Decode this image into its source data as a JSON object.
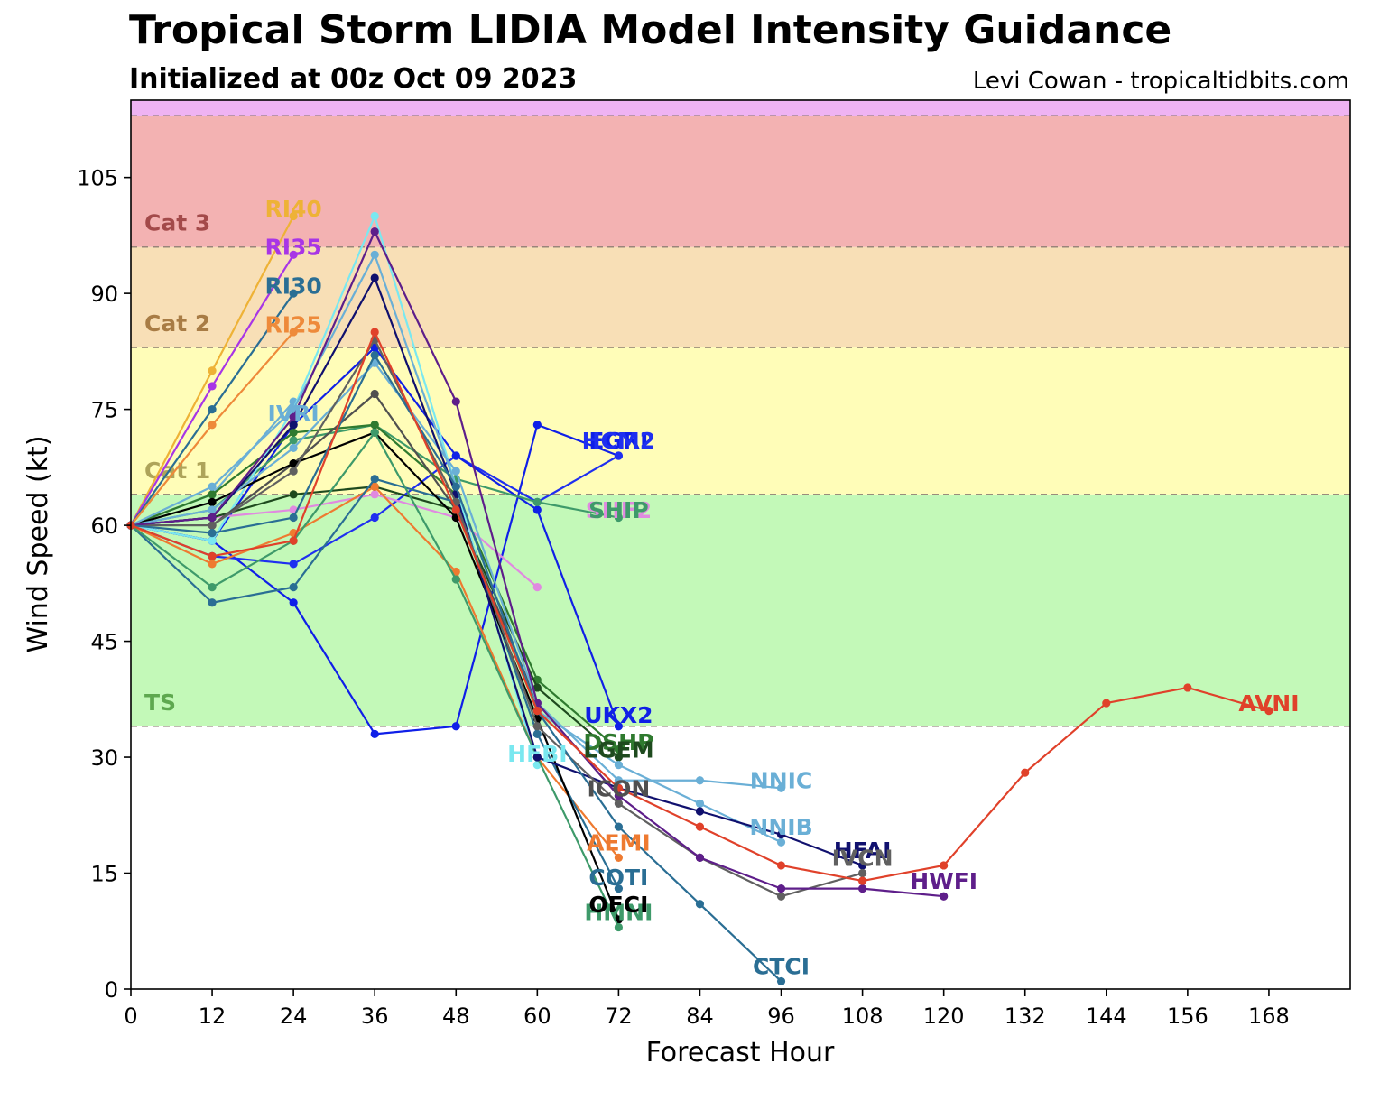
{
  "header": {
    "title": "Tropical Storm LIDIA Model Intensity Guidance",
    "subtitle": "Initialized at 00z Oct 09 2023",
    "credit": "Levi Cowan - tropicaltidbits.com"
  },
  "chart_data": {
    "type": "line",
    "title": "Tropical Storm LIDIA Model Intensity Guidance",
    "subtitle": "Initialized at 00z Oct 09 2023",
    "xlabel": "Forecast Hour",
    "ylabel": "Wind Speed (kt)",
    "xlim": [
      0,
      180
    ],
    "ylim": [
      0,
      115
    ],
    "xticks": [
      0,
      12,
      24,
      36,
      48,
      60,
      72,
      84,
      96,
      108,
      120,
      132,
      144,
      156,
      168
    ],
    "yticks": [
      0,
      15,
      30,
      45,
      60,
      75,
      90,
      105
    ],
    "grid": false,
    "bands": [
      {
        "label": "TS",
        "from": 34,
        "to": 64,
        "color": "#c3f9b8",
        "label_color": "#5ea84f"
      },
      {
        "label": "Cat 1",
        "from": 64,
        "to": 83,
        "color": "#fffdb8",
        "label_color": "#aea45a"
      },
      {
        "label": "Cat 2",
        "from": 83,
        "to": 96,
        "color": "#f8dfb6",
        "label_color": "#a87c45"
      },
      {
        "label": "Cat 3",
        "from": 96,
        "to": 113,
        "color": "#f3b2b2",
        "label_color": "#a34a4a"
      },
      {
        "label": "",
        "from": 113,
        "to": 115,
        "color": "#efb3f3",
        "label_color": "#a05aa0"
      }
    ],
    "series": [
      {
        "name": "RI40",
        "color": "#eeb236",
        "x": [
          0,
          12,
          24
        ],
        "y": [
          60,
          80,
          100
        ]
      },
      {
        "name": "RI35",
        "color": "#a835e6",
        "x": [
          0,
          12,
          24
        ],
        "y": [
          60,
          78,
          95
        ]
      },
      {
        "name": "RI30",
        "color": "#2a6e94",
        "x": [
          0,
          12,
          24
        ],
        "y": [
          60,
          75,
          90
        ]
      },
      {
        "name": "RI25",
        "color": "#ee8a3a",
        "x": [
          0,
          12,
          24
        ],
        "y": [
          60,
          73,
          85
        ]
      },
      {
        "name": "IVRI",
        "color": "#6aafd6",
        "x": [
          0,
          12,
          24
        ],
        "y": [
          60,
          64,
          76
        ]
      },
      {
        "name": "EGRI",
        "color": "#0f1fe8",
        "x": [
          0,
          12,
          24,
          36,
          48,
          60,
          72
        ],
        "y": [
          60,
          58,
          50,
          33,
          34,
          73,
          69
        ]
      },
      {
        "name": "HCM2",
        "color": "#1f2ff0",
        "x": [
          0,
          12,
          24,
          36,
          48,
          60,
          72
        ],
        "y": [
          60,
          56,
          55,
          61,
          69,
          63,
          69
        ]
      },
      {
        "name": "UKX2",
        "color": "#1020e6",
        "x": [
          0,
          12,
          24,
          36,
          48,
          60,
          72
        ],
        "y": [
          60,
          58,
          73,
          83,
          69,
          62,
          34
        ]
      },
      {
        "name": "SHIP",
        "color": "#3e9a6a",
        "x": [
          0,
          12,
          24,
          36,
          48,
          60,
          72
        ],
        "y": [
          60,
          62,
          71,
          73,
          66,
          63,
          61
        ]
      },
      {
        "name": "SHF2",
        "color": "#e08ae0",
        "x": [
          0,
          12,
          24,
          36,
          48,
          60
        ],
        "y": [
          60,
          61,
          62,
          64,
          61,
          52
        ]
      },
      {
        "name": "DSHP",
        "color": "#2f7a2f",
        "x": [
          0,
          12,
          24,
          36,
          48,
          60,
          72
        ],
        "y": [
          60,
          64,
          72,
          73,
          64,
          40,
          31
        ]
      },
      {
        "name": "LGEM",
        "color": "#1e4a1e",
        "x": [
          0,
          12,
          24,
          36,
          48,
          60,
          72
        ],
        "y": [
          60,
          61,
          64,
          65,
          62,
          39,
          30
        ]
      },
      {
        "name": "HFBI",
        "color": "#7ae8f0",
        "x": [
          0,
          12,
          24,
          36,
          48,
          60
        ],
        "y": [
          60,
          58,
          75,
          100,
          65,
          29
        ]
      },
      {
        "name": "ICON",
        "color": "#505050",
        "x": [
          0,
          12,
          24,
          36,
          48,
          60,
          72
        ],
        "y": [
          60,
          60,
          68,
          77,
          62,
          37,
          25
        ]
      },
      {
        "name": "AEMI",
        "color": "#ee7a30",
        "x": [
          0,
          12,
          24,
          36,
          48,
          60,
          72
        ],
        "y": [
          60,
          55,
          59,
          65,
          54,
          30,
          17
        ]
      },
      {
        "name": "COTI",
        "color": "#2a6e94",
        "x": [
          0,
          12,
          24,
          36,
          48,
          60,
          72
        ],
        "y": [
          60,
          50,
          52,
          66,
          63,
          33,
          13
        ]
      },
      {
        "name": "OFCI",
        "color": "#000000",
        "x": [
          0,
          12,
          24,
          36,
          48,
          60,
          72
        ],
        "y": [
          60,
          63,
          68,
          72,
          61,
          35,
          9
        ]
      },
      {
        "name": "HMNI",
        "color": "#3e9a6a",
        "x": [
          0,
          12,
          24,
          36,
          48,
          60,
          72
        ],
        "y": [
          60,
          52,
          58,
          72,
          53,
          30,
          8
        ]
      },
      {
        "name": "NNIC",
        "color": "#6aafd6",
        "x": [
          0,
          12,
          24,
          36,
          48,
          60,
          72,
          84,
          96
        ],
        "y": [
          60,
          62,
          70,
          81,
          67,
          37,
          27,
          27,
          26
        ]
      },
      {
        "name": "NNIB",
        "color": "#6aafd6",
        "x": [
          0,
          12,
          24,
          36,
          48,
          60,
          72,
          84,
          96
        ],
        "y": [
          60,
          65,
          75,
          95,
          65,
          36,
          29,
          24,
          19
        ]
      },
      {
        "name": "HFAI",
        "color": "#10106e",
        "x": [
          0,
          12,
          24,
          36,
          48,
          60,
          72,
          84,
          96,
          108
        ],
        "y": [
          60,
          61,
          73,
          92,
          64,
          30,
          26,
          23,
          20,
          16
        ]
      },
      {
        "name": "IVCN",
        "color": "#606060",
        "x": [
          0,
          12,
          24,
          36,
          48,
          60,
          72,
          84,
          96,
          108
        ],
        "y": [
          60,
          60,
          67,
          84,
          63,
          34,
          24,
          17,
          12,
          15
        ]
      },
      {
        "name": "HWFI",
        "color": "#5e1e8a",
        "x": [
          0,
          12,
          24,
          36,
          48,
          60,
          72,
          84,
          96,
          108,
          120
        ],
        "y": [
          60,
          61,
          74,
          98,
          76,
          37,
          25,
          17,
          13,
          13,
          12
        ]
      },
      {
        "name": "CTCI",
        "color": "#2a6e94",
        "x": [
          0,
          12,
          24,
          36,
          48,
          60,
          72,
          84,
          96
        ],
        "y": [
          60,
          59,
          61,
          82,
          65,
          36,
          21,
          11,
          1
        ]
      },
      {
        "name": "AVNI",
        "color": "#e0412a",
        "x": [
          0,
          12,
          24,
          36,
          48,
          60,
          72,
          84,
          96,
          108,
          120,
          132,
          144,
          156,
          168
        ],
        "y": [
          60,
          56,
          58,
          85,
          62,
          36,
          26,
          21,
          16,
          14,
          16,
          28,
          37,
          39,
          36
        ]
      }
    ],
    "labels": [
      {
        "text": "RI40",
        "color": "#eeb236",
        "x": 24,
        "y": 101
      },
      {
        "text": "RI35",
        "color": "#a835e6",
        "x": 24,
        "y": 96
      },
      {
        "text": "RI30",
        "color": "#2a6e94",
        "x": 24,
        "y": 91
      },
      {
        "text": "RI25",
        "color": "#ee8a3a",
        "x": 24,
        "y": 86
      },
      {
        "text": "IVRI",
        "color": "#6aafd6",
        "x": 24,
        "y": 74.5
      },
      {
        "text": "EGRI",
        "color": "#0f1fe8",
        "x": 72,
        "y": 71
      },
      {
        "text": "HCM2",
        "color": "#1f2ff0",
        "x": 72,
        "y": 71
      },
      {
        "text": "SHF2",
        "color": "#e08ae0",
        "x": 72,
        "y": 62
      },
      {
        "text": "SHIP",
        "color": "#3e9a6a",
        "x": 72,
        "y": 62
      },
      {
        "text": "UKX2",
        "color": "#1020e6",
        "x": 72,
        "y": 35.5
      },
      {
        "text": "DSHP",
        "color": "#2f7a2f",
        "x": 72,
        "y": 32
      },
      {
        "text": "LGEM",
        "color": "#1e4a1e",
        "x": 72,
        "y": 31
      },
      {
        "text": "HFBI",
        "color": "#7ae8f0",
        "x": 60,
        "y": 30.5
      },
      {
        "text": "ICON",
        "color": "#505050",
        "x": 72,
        "y": 26
      },
      {
        "text": "AEMI",
        "color": "#ee7a30",
        "x": 72,
        "y": 19
      },
      {
        "text": "COTI",
        "color": "#2a6e94",
        "x": 72,
        "y": 14.5
      },
      {
        "text": "HMNI",
        "color": "#3e9a6a",
        "x": 72,
        "y": 10
      },
      {
        "text": "OFCI",
        "color": "#000000",
        "x": 72,
        "y": 11
      },
      {
        "text": "NNIC",
        "color": "#6aafd6",
        "x": 96,
        "y": 27
      },
      {
        "text": "NNIB",
        "color": "#6aafd6",
        "x": 96,
        "y": 21
      },
      {
        "text": "HFAI",
        "color": "#10106e",
        "x": 108,
        "y": 18
      },
      {
        "text": "IVCN",
        "color": "#606060",
        "x": 108,
        "y": 17
      },
      {
        "text": "HWFI",
        "color": "#5e1e8a",
        "x": 120,
        "y": 14
      },
      {
        "text": "CTCI",
        "color": "#2a6e94",
        "x": 96,
        "y": 3
      },
      {
        "text": "AVNI",
        "color": "#e0412a",
        "x": 168,
        "y": 37
      }
    ]
  }
}
